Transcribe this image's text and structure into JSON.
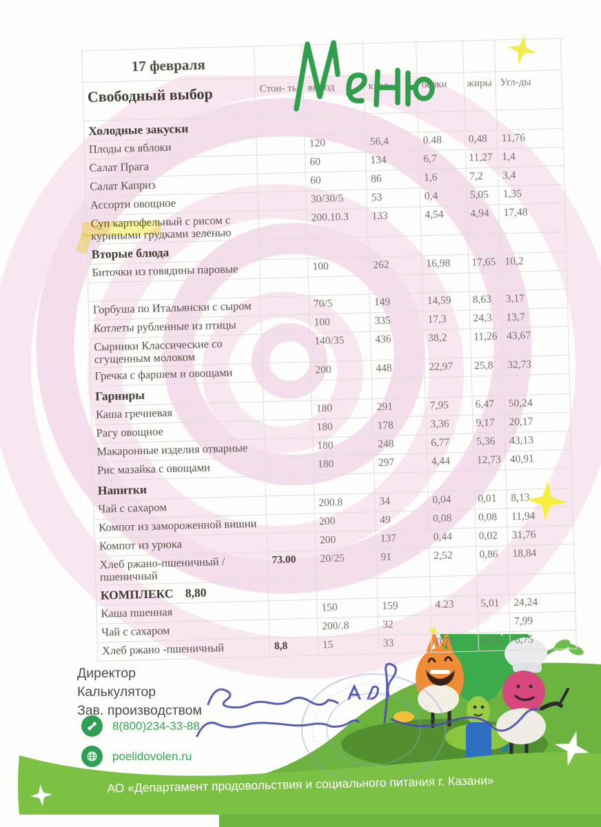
{
  "date": "17 февраля",
  "menu_title": "Меню",
  "table": {
    "free_choice_label": "Свободный выбор",
    "columns": [
      "Стои- ть",
      "выход",
      "ккал",
      "белки",
      "жиры",
      "Угл-ды"
    ],
    "sections": [
      {
        "title": "Холодные закуски",
        "rows": [
          {
            "name": "Плоды св яблоки",
            "price": "",
            "out": "120",
            "kcal": "56,4",
            "protein": "0.48",
            "fat": "0,48",
            "carbs": "11,76"
          },
          {
            "name": "Салат Прага",
            "price": "",
            "out": "60",
            "kcal": "134",
            "protein": "6,7",
            "fat": "11,27",
            "carbs": "1,4"
          },
          {
            "name": "Салат Каприз",
            "price": "",
            "out": "60",
            "kcal": "86",
            "protein": "1,6",
            "fat": "7,2",
            "carbs": "3,4"
          },
          {
            "name": "Ассорти овощное",
            "price": "",
            "out": "30/30/5",
            "kcal": "53",
            "protein": "0,4",
            "fat": "5,05",
            "carbs": "1,35"
          },
          {
            "name": "Суп картофельный  с рисом с куриными грудками зеленью",
            "price": "",
            "out": "200.10.3",
            "kcal": "133",
            "protein": "4,54",
            "fat": "4,94",
            "carbs": "17,48"
          }
        ]
      },
      {
        "title": "Вторые блюда",
        "rows": [
          {
            "name": "Биточки из говядины паровые",
            "price": "",
            "out": "100",
            "kcal": "262",
            "protein": "16,98",
            "fat": "17,65",
            "carbs": "10,2"
          },
          {
            "name": "",
            "price": "",
            "out": "",
            "kcal": "",
            "protein": "",
            "fat": "",
            "carbs": ""
          },
          {
            "name": "Горбуша по Итальянски с сыром",
            "price": "",
            "out": "70/5",
            "kcal": "149",
            "protein": "14,59",
            "fat": "8,63",
            "carbs": "3,17"
          },
          {
            "name": "Котлеты рубленные из птицы",
            "price": "",
            "out": "100",
            "kcal": "335",
            "protein": "17,3",
            "fat": "24,3",
            "carbs": "13,7"
          },
          {
            "name": "Сырники Классические  со сгущенным молоком",
            "price": "",
            "out": "140/35",
            "kcal": "436",
            "protein": "38,2",
            "fat": "11,26",
            "carbs": "43,67"
          },
          {
            "name": "Гречка с фаршем и овощами",
            "price": "",
            "out": "200",
            "kcal": "448",
            "protein": "22,97",
            "fat": "25,8",
            "carbs": "32,73"
          }
        ]
      },
      {
        "title": "Гарниры",
        "rows": [
          {
            "name": "Каша гречневая",
            "price": "",
            "out": "180",
            "kcal": "291",
            "protein": "7,95",
            "fat": "6,47",
            "carbs": "50,24"
          },
          {
            "name": "Рагу овощное",
            "price": "",
            "out": "180",
            "kcal": "178",
            "protein": "3,36",
            "fat": "9,17",
            "carbs": "20,17"
          },
          {
            "name": "Макаронные изделия отварные",
            "price": "",
            "out": "180",
            "kcal": "248",
            "protein": "6,77",
            "fat": "5,36",
            "carbs": "43,13"
          },
          {
            "name": "Рис мазайка с овощами",
            "price": "",
            "out": "180",
            "kcal": "297",
            "protein": "4,44",
            "fat": "12,73",
            "carbs": "40,91"
          }
        ]
      },
      {
        "title": "Напитки",
        "rows": [
          {
            "name": "Чай с сахаром",
            "price": "",
            "out": "200.8",
            "kcal": "34",
            "protein": "0,04",
            "fat": "0,01",
            "carbs": "8,13"
          },
          {
            "name": "Компот из замороженной вишни",
            "price": "",
            "out": "200",
            "kcal": "49",
            "protein": "0,08",
            "fat": "0,08",
            "carbs": "11,94"
          },
          {
            "name": "Компот из урюка",
            "price": "",
            "out": "200",
            "kcal": "137",
            "protein": "0,44",
            "fat": "0,02",
            "carbs": "31,76"
          },
          {
            "name": "Хлеб ржано-пшеничный /пшеничный",
            "price": "73.00",
            "out": "20/25",
            "kcal": "91",
            "protein": "2,52",
            "fat": "0,86",
            "carbs": "18,84"
          }
        ]
      },
      {
        "title": "КОМПЛЕКС",
        "price": "8,80",
        "rows": [
          {
            "name": "Каша пшенная",
            "price": "",
            "out": "150",
            "kcal": "159",
            "protein": "4.23",
            "fat": "5,01",
            "carbs": "24,24"
          },
          {
            "name": "Чай с сахаром",
            "price": "",
            "out": "200/.8",
            "kcal": "32",
            "protein": "",
            "fat": "",
            "carbs": "7,99"
          },
          {
            "name": "Хлеб ржано -пшеничный",
            "price": "8,8",
            "out": "15",
            "kcal": "33",
            "protein": "0,75",
            "fat": "0,15",
            "carbs": "6,75"
          }
        ]
      }
    ]
  },
  "footer": {
    "roles": [
      "Директор",
      "Калькулятор",
      "Зав. производством"
    ],
    "phone": "8(800)234-33-88",
    "website": "poelidovolen.ru",
    "phone_icon": "phone-icon",
    "globe_icon": "globe-icon"
  },
  "banner": {
    "text": "АО «Департамент продовольствия и социального питания г. Казани»"
  },
  "decor": {
    "characters": [
      "onion-character",
      "broccoli-character",
      "radish-character"
    ],
    "stamp": "round-stamp",
    "signatures": "handwritten-signatures"
  },
  "colors": {
    "menu_title_green": "#2f9e4d",
    "contact_green": "#2f9e55",
    "banner_green": "#7cc143",
    "hill_green": "#6db33f",
    "spiral_pink": "#f5d9ea",
    "highlight_yellow": "#f6ee4e",
    "signature_blue": "#4b4fae",
    "stamp_blue": "#8f9fd4"
  }
}
